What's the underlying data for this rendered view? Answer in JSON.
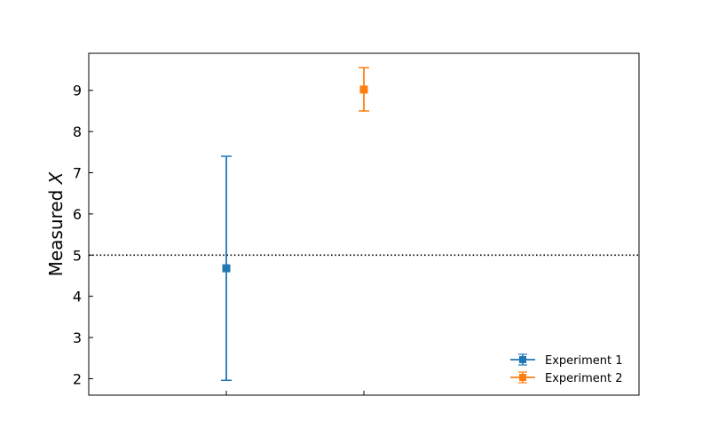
{
  "chart_data": {
    "type": "scatter",
    "ylabel_prefix": "Measured ",
    "ylabel_symbol": "X",
    "xlim": [
      0,
      1
    ],
    "ylim": [
      1.6,
      9.9
    ],
    "yticks": [
      2,
      3,
      4,
      5,
      6,
      7,
      8,
      9
    ],
    "xticks": [
      0.25,
      0.5
    ],
    "grid": false,
    "legend_position": "bottom-right",
    "reference_line": {
      "y": 5,
      "style": "dotted",
      "color": "#000000"
    },
    "series": [
      {
        "name": "Experiment 1",
        "x": 0.25,
        "y": 4.68,
        "yerr_low": 1.96,
        "yerr_high": 7.4,
        "color": "#1f77b4",
        "marker": "square"
      },
      {
        "name": "Experiment 2",
        "x": 0.5,
        "y": 9.02,
        "yerr_low": 8.5,
        "yerr_high": 9.55,
        "color": "#ff7f0e",
        "marker": "square"
      }
    ]
  }
}
